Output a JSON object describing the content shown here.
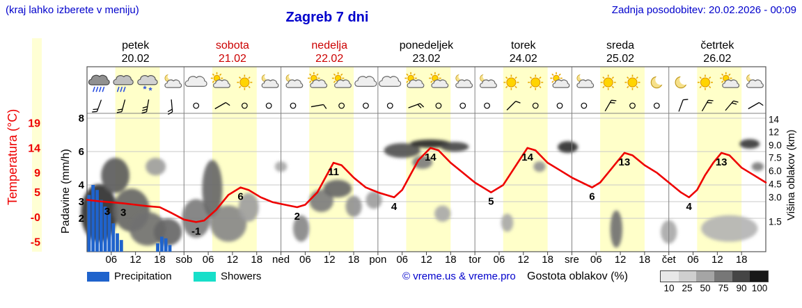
{
  "header": {
    "left_note": "(kraj lahko izberete v meniju)",
    "title": "Zagreb 7 dni",
    "updated": "Zadnja posodobitev: 20.02.2026 - 00:09"
  },
  "days": [
    {
      "name": "petek",
      "date": "20.02",
      "weekend": false
    },
    {
      "name": "sobota",
      "date": "21.02",
      "weekend": true
    },
    {
      "name": "nedelja",
      "date": "22.02",
      "weekend": true
    },
    {
      "name": "ponedeljek",
      "date": "23.02",
      "weekend": false
    },
    {
      "name": "torek",
      "date": "24.02",
      "weekend": false
    },
    {
      "name": "sreda",
      "date": "25.02",
      "weekend": false
    },
    {
      "name": "četrtek",
      "date": "26.02",
      "weekend": false
    }
  ],
  "axes": {
    "temp_title": "Temperatura (°C)",
    "temp_ticks": [
      {
        "label": "19",
        "value": 19
      },
      {
        "label": "14",
        "value": 14
      },
      {
        "label": "9",
        "value": 9
      },
      {
        "label": "5",
        "value": 5
      },
      {
        "label": "-0",
        "value": 0
      },
      {
        "label": "-5",
        "value": -5
      }
    ],
    "precip_title": "Padavine (mm/h)",
    "precip_ticks": [
      {
        "label": "8",
        "value": 8
      },
      {
        "label": "6",
        "value": 6
      },
      {
        "label": "4",
        "value": 4
      },
      {
        "label": "3",
        "value": 3
      },
      {
        "label": "2",
        "value": 2
      }
    ],
    "cloud_title": "Višina oblakov (km)",
    "cloud_ticks": [
      {
        "label": "14",
        "km": 14
      },
      {
        "label": "12",
        "km": 12
      },
      {
        "label": "9.0",
        "km": 9
      },
      {
        "label": "7.5",
        "km": 7.5
      },
      {
        "label": "6.0",
        "km": 6
      },
      {
        "label": "4.5",
        "km": 4.5
      },
      {
        "label": "3.0",
        "km": 3
      },
      {
        "label": "1.5",
        "km": 1.5
      }
    ]
  },
  "time_axis": [
    {
      "label": "06",
      "hour": 6
    },
    {
      "label": "12",
      "hour": 12
    },
    {
      "label": "18",
      "hour": 18
    },
    {
      "label": "sob",
      "hour": 24
    },
    {
      "label": "06",
      "hour": 30
    },
    {
      "label": "12",
      "hour": 36
    },
    {
      "label": "18",
      "hour": 42
    },
    {
      "label": "ned",
      "hour": 48
    },
    {
      "label": "06",
      "hour": 54
    },
    {
      "label": "12",
      "hour": 60
    },
    {
      "label": "18",
      "hour": 66
    },
    {
      "label": "pon",
      "hour": 72
    },
    {
      "label": "06",
      "hour": 78
    },
    {
      "label": "12",
      "hour": 84
    },
    {
      "label": "18",
      "hour": 90
    },
    {
      "label": "tor",
      "hour": 96
    },
    {
      "label": "06",
      "hour": 102
    },
    {
      "label": "12",
      "hour": 108
    },
    {
      "label": "18",
      "hour": 114
    },
    {
      "label": "sre",
      "hour": 120
    },
    {
      "label": "06",
      "hour": 126
    },
    {
      "label": "12",
      "hour": 132
    },
    {
      "label": "18",
      "hour": 138
    },
    {
      "label": "čet",
      "hour": 144
    },
    {
      "label": "06",
      "hour": 150
    },
    {
      "label": "12",
      "hour": 156
    },
    {
      "label": "18",
      "hour": 162
    }
  ],
  "legend": {
    "precipitation": "Precipitation",
    "showers": "Showers",
    "copyright": "© vreme.us & vreme.pro",
    "cloud_density": "Gostota oblakov (%)",
    "density_ticks": [
      "10",
      "25",
      "50",
      "75",
      "90",
      "100"
    ]
  },
  "colors": {
    "header_blue": "#0000cc",
    "weekend_red": "#cc0000",
    "temp_red": "#ee0000",
    "precip_blue": "#1f63cc",
    "showers_cyan": "#17dfc9",
    "day_band": "#ffffc9",
    "grid_gray": "#c8c8c8",
    "frame_gray": "#555555",
    "density_scale": [
      "#e8e8e8",
      "#cfcfcf",
      "#a5a5a5",
      "#777777",
      "#454545",
      "#181818"
    ]
  },
  "chart_data": {
    "type": "meteogram",
    "title": "Zagreb 7 dni",
    "x_unit": "hours_from_friday_00",
    "x_range": [
      0,
      168
    ],
    "temp_axis_range_c": [
      -7,
      21
    ],
    "precip_axis_range_mm_h": [
      0,
      8
    ],
    "daylight_band_hours": [
      7,
      18
    ],
    "temperature_c": {
      "series": [
        [
          0,
          3.5
        ],
        [
          3,
          3.2
        ],
        [
          6,
          3
        ],
        [
          9,
          2.8
        ],
        [
          12,
          2.5
        ],
        [
          15,
          2.2
        ],
        [
          18,
          2
        ],
        [
          21,
          0.8
        ],
        [
          24,
          -0.5
        ],
        [
          27,
          -1
        ],
        [
          29,
          -0.7
        ],
        [
          32,
          1.5
        ],
        [
          35,
          4.5
        ],
        [
          38,
          6
        ],
        [
          40,
          5.5
        ],
        [
          43,
          4
        ],
        [
          46,
          3
        ],
        [
          49,
          2.5
        ],
        [
          52,
          2
        ],
        [
          54,
          2.5
        ],
        [
          57,
          5
        ],
        [
          59,
          8
        ],
        [
          61,
          11
        ],
        [
          63,
          10.5
        ],
        [
          66,
          8
        ],
        [
          69,
          6
        ],
        [
          72,
          5
        ],
        [
          74,
          4.5
        ],
        [
          76,
          4
        ],
        [
          78,
          5.5
        ],
        [
          80,
          8.5
        ],
        [
          82,
          11.5
        ],
        [
          85,
          14
        ],
        [
          87,
          13.5
        ],
        [
          90,
          11
        ],
        [
          93,
          9
        ],
        [
          96,
          7
        ],
        [
          99,
          5.5
        ],
        [
          100,
          5
        ],
        [
          103,
          6.5
        ],
        [
          105,
          9
        ],
        [
          107,
          11.5
        ],
        [
          109,
          14
        ],
        [
          111,
          13.5
        ],
        [
          114,
          11
        ],
        [
          117,
          9.5
        ],
        [
          120,
          8
        ],
        [
          123,
          6.8
        ],
        [
          125,
          6
        ],
        [
          127,
          7
        ],
        [
          129,
          9
        ],
        [
          131,
          11
        ],
        [
          133,
          13
        ],
        [
          135,
          12.5
        ],
        [
          138,
          10.5
        ],
        [
          141,
          9
        ],
        [
          144,
          7
        ],
        [
          147,
          5
        ],
        [
          149,
          4
        ],
        [
          151,
          5.5
        ],
        [
          153,
          8.5
        ],
        [
          155,
          11
        ],
        [
          157,
          13
        ],
        [
          159,
          12.5
        ],
        [
          162,
          10
        ],
        [
          165,
          8.5
        ],
        [
          168,
          7
        ]
      ],
      "point_labels": [
        {
          "text": "3",
          "h": 5,
          "t": 3
        },
        {
          "text": "3",
          "h": 9,
          "t": 2.8
        },
        {
          "text": "-1",
          "h": 27,
          "t": -1
        },
        {
          "text": "6",
          "h": 38,
          "t": 6
        },
        {
          "text": "2",
          "h": 52,
          "t": 2
        },
        {
          "text": "11",
          "h": 61,
          "t": 11
        },
        {
          "text": "4",
          "h": 76,
          "t": 4
        },
        {
          "text": "14",
          "h": 85,
          "t": 14
        },
        {
          "text": "5",
          "h": 100,
          "t": 5
        },
        {
          "text": "14",
          "h": 109,
          "t": 14
        },
        {
          "text": "6",
          "h": 125,
          "t": 6
        },
        {
          "text": "13",
          "h": 133,
          "t": 13
        },
        {
          "text": "4",
          "h": 149,
          "t": 4
        },
        {
          "text": "13",
          "h": 157,
          "t": 13
        }
      ]
    },
    "precipitation_mm_h": [
      [
        0,
        3.4
      ],
      [
        1,
        4.0
      ],
      [
        2,
        3.7
      ],
      [
        3,
        3.1
      ],
      [
        4,
        2.7
      ],
      [
        5,
        2.3
      ],
      [
        6,
        1.7
      ],
      [
        7,
        1.1
      ],
      [
        8,
        0.7
      ],
      [
        17,
        0.5
      ],
      [
        18,
        0.9
      ],
      [
        19,
        0.8
      ],
      [
        20,
        0.4
      ]
    ],
    "weather_icons": [
      "rain-heavy",
      "rain",
      "snow",
      "moon-cloud",
      "cloud",
      "sun-cloud",
      "sun",
      "moon-cloud",
      "moon-cloud",
      "sun-cloud",
      "sun-cloud",
      "cloud",
      "cloud",
      "sun-cloud",
      "sun-cloud",
      "moon-cloud",
      "moon-cloud",
      "sun",
      "sun",
      "sun-cloud",
      "moon-cloud",
      "sun",
      "sun",
      "moon",
      "moon",
      "sun",
      "sun-cloud",
      "moon-cloud"
    ],
    "wind": [
      {
        "type": "barb",
        "dir": 200,
        "ticks": 2
      },
      {
        "type": "barb",
        "dir": 195,
        "ticks": 2
      },
      {
        "type": "barb",
        "dir": 190,
        "ticks": 3
      },
      {
        "type": "barb",
        "dir": 175,
        "ticks": 2
      },
      {
        "type": "calm"
      },
      {
        "type": "barb",
        "dir": 60,
        "ticks": 1
      },
      {
        "type": "calm"
      },
      {
        "type": "calm"
      },
      {
        "type": "calm"
      },
      {
        "type": "barb",
        "dir": 80,
        "ticks": 1
      },
      {
        "type": "calm"
      },
      {
        "type": "calm"
      },
      {
        "type": "calm"
      },
      {
        "type": "barb",
        "dir": 70,
        "ticks": 2
      },
      {
        "type": "calm"
      },
      {
        "type": "calm"
      },
      {
        "type": "calm"
      },
      {
        "type": "barb",
        "dir": 45,
        "ticks": 1
      },
      {
        "type": "calm"
      },
      {
        "type": "calm"
      },
      {
        "type": "calm"
      },
      {
        "type": "barb",
        "dir": 30,
        "ticks": 2
      },
      {
        "type": "calm"
      },
      {
        "type": "calm"
      },
      {
        "type": "barb",
        "dir": 20,
        "ticks": 1
      },
      {
        "type": "barb",
        "dir": 30,
        "ticks": 2
      },
      {
        "type": "barb",
        "dir": 40,
        "ticks": 2
      },
      {
        "type": "barb",
        "dir": 60,
        "ticks": 1
      }
    ],
    "clouds": [
      {
        "h": 3,
        "km": 2.5,
        "wh": 9,
        "dkm": 4,
        "d": 85
      },
      {
        "h": 7,
        "km": 5.5,
        "wh": 7,
        "dkm": 4,
        "d": 65
      },
      {
        "h": 11,
        "km": 2.5,
        "wh": 9,
        "dkm": 3,
        "d": 60
      },
      {
        "h": 15,
        "km": 1.2,
        "wh": 9,
        "dkm": 1.8,
        "d": 55
      },
      {
        "h": 17,
        "km": 6.5,
        "wh": 5,
        "dkm": 2,
        "d": 35
      },
      {
        "h": 20,
        "km": 1,
        "wh": 7,
        "dkm": 1.4,
        "d": 60
      },
      {
        "h": 27,
        "km": 1.8,
        "wh": 7,
        "dkm": 2.2,
        "d": 50
      },
      {
        "h": 31,
        "km": 4.5,
        "wh": 5,
        "dkm": 5.5,
        "d": 60
      },
      {
        "h": 35,
        "km": 1.5,
        "wh": 9,
        "dkm": 2,
        "d": 45
      },
      {
        "h": 40,
        "km": 2.5,
        "wh": 5,
        "dkm": 2,
        "d": 35
      },
      {
        "h": 48,
        "km": 6.5,
        "wh": 3,
        "dkm": 1.2,
        "d": 30
      },
      {
        "h": 53,
        "km": 1.2,
        "wh": 4,
        "dkm": 1.4,
        "d": 45
      },
      {
        "h": 58,
        "km": 3,
        "wh": 6,
        "dkm": 1.8,
        "d": 50
      },
      {
        "h": 62,
        "km": 4,
        "wh": 7,
        "dkm": 2,
        "d": 60
      },
      {
        "h": 66,
        "km": 2.5,
        "wh": 4,
        "dkm": 1.4,
        "d": 40
      },
      {
        "h": 71,
        "km": 3,
        "wh": 4,
        "dkm": 1.4,
        "d": 35
      },
      {
        "h": 78,
        "km": 8.5,
        "wh": 9,
        "dkm": 2,
        "d": 70
      },
      {
        "h": 85,
        "km": 9.5,
        "wh": 10,
        "dkm": 1.6,
        "d": 88
      },
      {
        "h": 83,
        "km": 7,
        "wh": 5,
        "dkm": 1.5,
        "d": 50
      },
      {
        "h": 91,
        "km": 9,
        "wh": 7,
        "dkm": 1.5,
        "d": 75
      },
      {
        "h": 88,
        "km": 2,
        "wh": 4,
        "dkm": 1,
        "d": 30
      },
      {
        "h": 104,
        "km": 1.5,
        "wh": 3,
        "dkm": 1,
        "d": 30
      },
      {
        "h": 112,
        "km": 6.5,
        "wh": 3,
        "dkm": 1.2,
        "d": 40
      },
      {
        "h": 119,
        "km": 9,
        "wh": 5,
        "dkm": 1.8,
        "d": 85
      },
      {
        "h": 131,
        "km": 1.2,
        "wh": 3,
        "dkm": 2,
        "d": 55
      },
      {
        "h": 144,
        "km": 1,
        "wh": 4,
        "dkm": 1.2,
        "d": 30
      },
      {
        "h": 159,
        "km": 1.2,
        "wh": 14,
        "dkm": 1.4,
        "d": 25
      },
      {
        "h": 164,
        "km": 9.5,
        "wh": 5,
        "dkm": 1.8,
        "d": 80
      },
      {
        "h": 166,
        "km": 6.5,
        "wh": 3,
        "dkm": 1,
        "d": 50
      }
    ]
  }
}
